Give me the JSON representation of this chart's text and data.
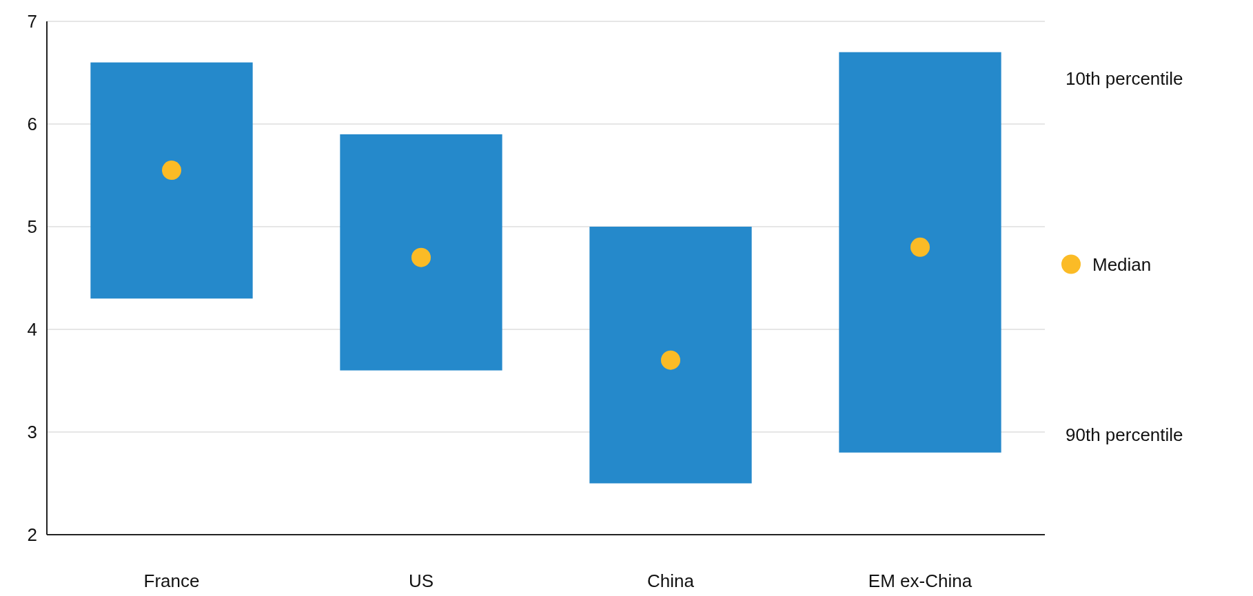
{
  "chart_data": {
    "type": "bar",
    "categories": [
      "France",
      "US",
      "China",
      "EM ex-China"
    ],
    "series": [
      {
        "color": "#2589cb",
        "base": [
          4.3,
          3.6,
          2.5,
          2.8
        ],
        "values": [
          2.3,
          2.3,
          2.5,
          3.9
        ]
      },
      {
        "type": "scatter",
        "name": "Median",
        "color": "#fbbb26",
        "x": [
          "France",
          "US",
          "China",
          "EM ex-China"
        ],
        "values": [
          5.55,
          4.7,
          3.7,
          4.8
        ]
      }
    ],
    "ylim": [
      2,
      7
    ],
    "yticks": [
      2,
      3,
      4,
      5,
      6,
      7
    ],
    "grid": "y",
    "legend": "right",
    "marker": "circle",
    "annotations": [
      "10th percentile",
      "90th percentile"
    ]
  }
}
